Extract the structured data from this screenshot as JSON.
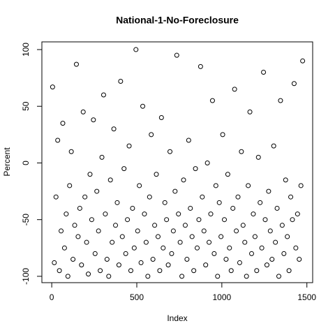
{
  "chart_data": {
    "type": "scatter",
    "title": "National-1-No-Foreclosure",
    "x_label": "Index",
    "y_label": "Percent",
    "x": [
      5,
      15,
      25,
      35,
      45,
      55,
      65,
      75,
      85,
      95,
      105,
      115,
      125,
      135,
      145,
      155,
      165,
      175,
      185,
      195,
      205,
      215,
      225,
      235,
      245,
      255,
      265,
      275,
      285,
      295,
      305,
      315,
      325,
      335,
      345,
      355,
      365,
      375,
      385,
      395,
      405,
      415,
      425,
      435,
      445,
      455,
      465,
      475,
      485,
      495,
      505,
      515,
      525,
      535,
      545,
      555,
      565,
      575,
      585,
      595,
      605,
      615,
      625,
      635,
      645,
      655,
      665,
      675,
      685,
      695,
      705,
      715,
      725,
      735,
      745,
      755,
      765,
      775,
      785,
      795,
      805,
      815,
      825,
      835,
      845,
      855,
      865,
      875,
      885,
      895,
      905,
      915,
      925,
      935,
      945,
      955,
      965,
      975,
      985,
      995,
      1005,
      1015,
      1025,
      1035,
      1045,
      1055,
      1065,
      1075,
      1085,
      1095,
      1105,
      1115,
      1125,
      1135,
      1145,
      1155,
      1165,
      1175,
      1185,
      1195,
      1205,
      1215,
      1225,
      1235,
      1245,
      1255,
      1265,
      1275,
      1285,
      1295,
      1305,
      1315,
      1325,
      1335,
      1345,
      1355,
      1365,
      1375,
      1385,
      1395,
      1405,
      1415,
      1425,
      1435,
      1445,
      1455,
      1465,
      1475
    ],
    "values": [
      67,
      -88,
      -30,
      20,
      -95,
      -60,
      35,
      -75,
      -45,
      -100,
      -20,
      10,
      -85,
      -55,
      87,
      -65,
      -40,
      -90,
      45,
      -30,
      -70,
      -98,
      -10,
      -50,
      38,
      -80,
      -25,
      -60,
      -95,
      5,
      60,
      -45,
      -85,
      -100,
      -15,
      -70,
      30,
      -55,
      -35,
      -90,
      72,
      -65,
      -5,
      -80,
      -50,
      15,
      -95,
      -40,
      -75,
      100,
      -60,
      -20,
      -88,
      50,
      -45,
      -70,
      -100,
      -30,
      25,
      -85,
      -55,
      -10,
      -65,
      -95,
      40,
      -75,
      -35,
      -50,
      -90,
      10,
      -80,
      -60,
      -25,
      95,
      -45,
      -70,
      -100,
      -15,
      -55,
      -85,
      20,
      -40,
      -65,
      -95,
      -5,
      -75,
      -50,
      85,
      -30,
      -60,
      -90,
      0,
      -70,
      -45,
      55,
      -80,
      -20,
      -100,
      -35,
      -65,
      25,
      -50,
      -85,
      -10,
      -75,
      -95,
      -40,
      65,
      -60,
      -30,
      -88,
      10,
      -55,
      -70,
      -100,
      -20,
      45,
      -80,
      -45,
      -65,
      -95,
      5,
      -35,
      -75,
      80,
      -50,
      -90,
      -25,
      -60,
      -85,
      15,
      -70,
      -40,
      -100,
      55,
      -55,
      -80,
      -15,
      -65,
      -95,
      -30,
      -50,
      70,
      -75,
      -45,
      -85,
      -20,
      90
    ],
    "color": "#000000",
    "xlim": [
      -58,
      1534
    ],
    "ylim": [
      -105.6,
      106.8
    ],
    "xticks": [
      0,
      500,
      1000,
      1500
    ],
    "yticks": [
      -100,
      -50,
      0,
      50,
      100
    ]
  }
}
